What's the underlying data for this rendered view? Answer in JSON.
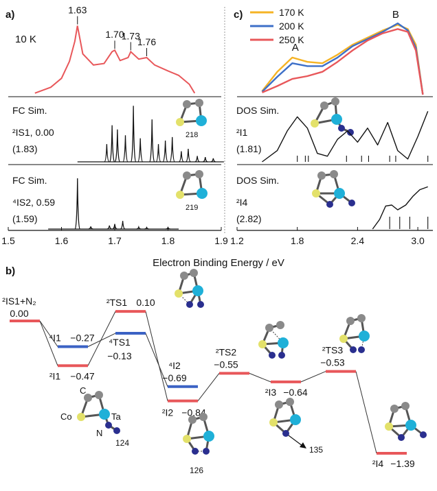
{
  "figure": {
    "panel_a_label": "a)",
    "panel_b_label": "b)",
    "panel_c_label": "c)",
    "x_axis_title": "Electron Binding Energy / eV"
  },
  "colors": {
    "exp_red": "#e8575a",
    "exp_orange": "#f5b324",
    "exp_blue": "#3d6fc8",
    "doublet_red": "#e8575a",
    "quartet_blue": "#3b62c4",
    "atom_c": "#8a8a8a",
    "atom_co": "#e3e16a",
    "atom_ta": "#1fb0d8",
    "atom_n": "#2a2f8f"
  },
  "chart_data": [
    {
      "id": "panel-a",
      "type": "line",
      "xlim": [
        1.5,
        1.9
      ],
      "xticks": [
        "1.5",
        "1.6",
        "1.7",
        "1.8",
        "1.9"
      ],
      "subplots": [
        {
          "label": "10 K",
          "kind": "experimental",
          "peaks": [
            {
              "x": 1.63,
              "label": "1.63"
            },
            {
              "x": 1.7,
              "label": "1.70"
            },
            {
              "x": 1.73,
              "label": "1.73"
            },
            {
              "x": 1.76,
              "label": "1.76"
            }
          ],
          "x": [
            1.55,
            1.58,
            1.6,
            1.615,
            1.625,
            1.63,
            1.64,
            1.66,
            1.68,
            1.695,
            1.7,
            1.71,
            1.725,
            1.73,
            1.745,
            1.76,
            1.775,
            1.8,
            1.82,
            1.84,
            1.85
          ],
          "y": [
            0.02,
            0.1,
            0.22,
            0.45,
            0.72,
            0.93,
            0.55,
            0.4,
            0.42,
            0.58,
            0.6,
            0.46,
            0.5,
            0.58,
            0.48,
            0.5,
            0.4,
            0.32,
            0.26,
            0.14,
            0.02
          ]
        },
        {
          "title": "FC Sim.",
          "state": "²IS1, 0.00",
          "state_value": "(1.83)",
          "structure": "218",
          "kind": "simulated",
          "sticks": [
            {
              "x": 1.685,
              "h": 0.3
            },
            {
              "x": 1.695,
              "h": 0.62
            },
            {
              "x": 1.705,
              "h": 0.55
            },
            {
              "x": 1.72,
              "h": 0.45
            },
            {
              "x": 1.735,
              "h": 0.95
            },
            {
              "x": 1.748,
              "h": 0.4
            },
            {
              "x": 1.77,
              "h": 0.72
            },
            {
              "x": 1.782,
              "h": 0.3
            },
            {
              "x": 1.795,
              "h": 0.36
            },
            {
              "x": 1.808,
              "h": 0.42
            },
            {
              "x": 1.825,
              "h": 0.18
            },
            {
              "x": 1.838,
              "h": 0.22
            },
            {
              "x": 1.855,
              "h": 0.1
            },
            {
              "x": 1.87,
              "h": 0.08
            },
            {
              "x": 1.885,
              "h": 0.06
            }
          ]
        },
        {
          "title": "FC Sim.",
          "state": "⁴IS2, 0.59",
          "state_value": "(1.59)",
          "structure": "219",
          "kind": "simulated",
          "sticks": [
            {
              "x": 1.63,
              "h": 1.0
            },
            {
              "x": 1.655,
              "h": 0.05
            },
            {
              "x": 1.69,
              "h": 0.07
            },
            {
              "x": 1.7,
              "h": 0.1
            },
            {
              "x": 1.715,
              "h": 0.16
            },
            {
              "x": 1.745,
              "h": 0.04
            },
            {
              "x": 1.76,
              "h": 0.03
            },
            {
              "x": 1.8,
              "h": 0.03
            }
          ]
        }
      ]
    },
    {
      "id": "panel-c",
      "type": "line",
      "xlim": [
        1.2,
        3.15
      ],
      "xticks": [
        "1.2",
        "1.8",
        "2.4",
        "3.0"
      ],
      "subplots": [
        {
          "kind": "experimental",
          "peak_labels": [
            {
              "x": 1.78,
              "label": "A"
            },
            {
              "x": 2.78,
              "label": "B"
            }
          ],
          "series": [
            {
              "name": "170 K",
              "color": "#f5b324",
              "x": [
                1.45,
                1.6,
                1.75,
                1.9,
                2.05,
                2.2,
                2.35,
                2.5,
                2.65,
                2.8,
                2.9,
                2.98,
                3.05
              ],
              "y": [
                0.05,
                0.32,
                0.52,
                0.46,
                0.44,
                0.56,
                0.7,
                0.8,
                0.9,
                0.98,
                0.92,
                0.7,
                0.0
              ]
            },
            {
              "name": "200 K",
              "color": "#3d6fc8",
              "x": [
                1.45,
                1.6,
                1.75,
                1.9,
                2.05,
                2.2,
                2.35,
                2.5,
                2.65,
                2.8,
                2.9,
                2.98,
                3.05
              ],
              "y": [
                0.04,
                0.25,
                0.44,
                0.4,
                0.4,
                0.52,
                0.68,
                0.78,
                0.88,
                1.0,
                0.9,
                0.66,
                0.0
              ]
            },
            {
              "name": "250 K",
              "color": "#e8575a",
              "x": [
                1.45,
                1.6,
                1.75,
                1.9,
                2.05,
                2.2,
                2.35,
                2.5,
                2.65,
                2.8,
                2.9,
                2.98,
                3.05
              ],
              "y": [
                0.03,
                0.12,
                0.22,
                0.26,
                0.32,
                0.46,
                0.62,
                0.76,
                0.86,
                0.92,
                0.88,
                0.62,
                0.0
              ]
            }
          ]
        },
        {
          "title": "DOS Sim.",
          "state": "²I1",
          "state_value": "(1.81)",
          "kind": "simulated",
          "curve": {
            "x": [
              1.45,
              1.6,
              1.7,
              1.8,
              1.9,
              2.0,
              2.1,
              2.2,
              2.3,
              2.4,
              2.5,
              2.6,
              2.7,
              2.8,
              2.9,
              3.0,
              3.1
            ],
            "y": [
              0.0,
              0.2,
              0.55,
              0.8,
              0.6,
              0.15,
              0.1,
              0.4,
              0.55,
              0.35,
              0.6,
              0.3,
              0.7,
              0.2,
              0.05,
              0.45,
              0.9
            ]
          },
          "sticks": [
            1.8,
            1.88,
            1.91,
            2.29,
            2.44,
            2.51,
            2.72,
            2.78,
            3.1
          ]
        },
        {
          "title": "DOS Sim.",
          "state": "²I4",
          "state_value": "(2.82)",
          "kind": "simulated",
          "curve": {
            "x": [
              2.55,
              2.62,
              2.68,
              2.74,
              2.8,
              2.88,
              2.95,
              3.02,
              3.1
            ],
            "y": [
              0.0,
              0.2,
              0.48,
              0.5,
              0.4,
              0.5,
              0.68,
              0.82,
              0.88
            ]
          },
          "sticks": [
            2.72,
            2.82,
            2.92,
            3.1
          ]
        }
      ]
    },
    {
      "id": "panel-b",
      "type": "energy-diagram",
      "levels": [
        {
          "id": "is1",
          "label": "²IS1+N₂",
          "value": "0.00",
          "energy": 0.0,
          "spin": "doublet",
          "col": 0
        },
        {
          "id": "i1q",
          "label": "⁴I1",
          "value": "−0.27",
          "energy": -0.27,
          "spin": "quartet",
          "col": 1
        },
        {
          "id": "i1d",
          "label": "²I1",
          "value": "−0.47",
          "energy": -0.47,
          "spin": "doublet",
          "col": 1
        },
        {
          "id": "ts1d",
          "label": "²TS1",
          "value": "0.10",
          "energy": 0.1,
          "spin": "doublet",
          "col": 2
        },
        {
          "id": "ts1q",
          "label": "⁴TS1",
          "value": "−0.13",
          "energy": -0.13,
          "spin": "quartet",
          "col": 2
        },
        {
          "id": "i2q",
          "label": "⁴I2",
          "value": "−0.69",
          "energy": -0.69,
          "spin": "quartet",
          "col": 3
        },
        {
          "id": "i2d",
          "label": "²I2",
          "value": "−0.84",
          "energy": -0.84,
          "spin": "doublet",
          "col": 3
        },
        {
          "id": "ts2",
          "label": "²TS2",
          "value": "−0.55",
          "energy": -0.55,
          "spin": "doublet",
          "col": 4
        },
        {
          "id": "i3",
          "label": "²I3",
          "value": "−0.64",
          "energy": -0.64,
          "spin": "doublet",
          "col": 5
        },
        {
          "id": "ts3",
          "label": "²TS3",
          "value": "−0.53",
          "energy": -0.53,
          "spin": "doublet",
          "col": 6
        },
        {
          "id": "i4",
          "label": "²I4",
          "value": "−1.39",
          "energy": -1.39,
          "spin": "doublet",
          "col": 7
        }
      ],
      "connections": [
        [
          "is1",
          "i1q"
        ],
        [
          "is1",
          "i1d"
        ],
        [
          "i1q",
          "ts1q"
        ],
        [
          "i1d",
          "ts1d"
        ],
        [
          "ts1q",
          "i2q"
        ],
        [
          "ts1d",
          "i2d"
        ],
        [
          "i2d",
          "ts2"
        ],
        [
          "ts2",
          "i3"
        ],
        [
          "i3",
          "ts3"
        ],
        [
          "ts3",
          "i4"
        ]
      ],
      "structure_labels": {
        "atom_c": "C",
        "atom_co": "Co",
        "atom_ta": "Ta",
        "atom_n": "N",
        "s124": "124",
        "s126": "126",
        "s135": "135"
      }
    }
  ]
}
